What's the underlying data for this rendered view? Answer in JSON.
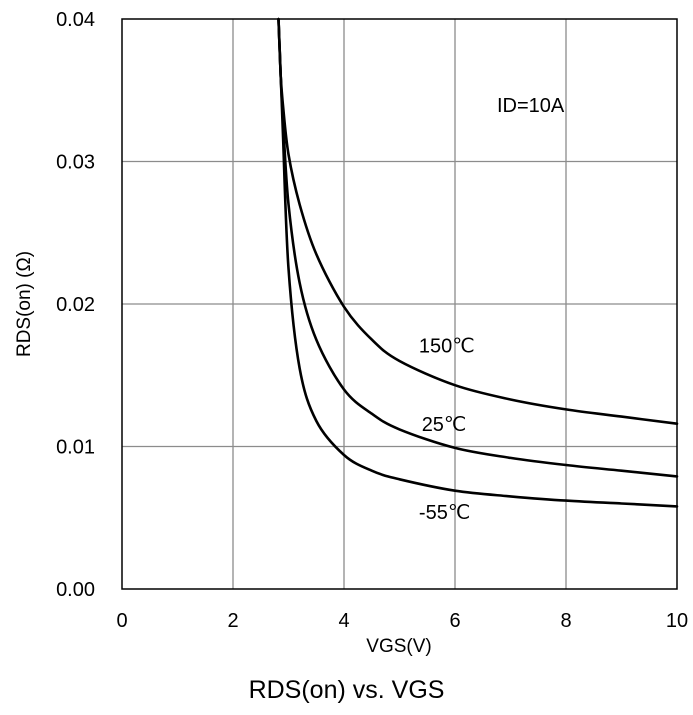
{
  "chart_data": {
    "type": "line",
    "title": "RDS(on) vs. VGS",
    "xlabel": "VGS(V)",
    "ylabel": "RDS(on) (Ω)",
    "xlim": [
      0,
      10
    ],
    "ylim": [
      0,
      0.04
    ],
    "x_ticks": [
      "0",
      "2",
      "4",
      "6",
      "8",
      "10"
    ],
    "y_ticks": [
      "0.00",
      "0.01",
      "0.02",
      "0.03",
      "0.04"
    ],
    "grid": true,
    "condition_label": "ID=10A",
    "series": [
      {
        "name": "150℃",
        "x": [
          2.82,
          2.86,
          2.9,
          3.0,
          3.2,
          3.5,
          4.0,
          4.5,
          5.0,
          6.0,
          7.0,
          8.0,
          9.0,
          10.0
        ],
        "y": [
          0.04,
          0.036,
          0.034,
          0.0305,
          0.027,
          0.0235,
          0.0198,
          0.0175,
          0.016,
          0.0143,
          0.0133,
          0.0126,
          0.0121,
          0.0116
        ]
      },
      {
        "name": "25℃",
        "x": [
          2.82,
          2.86,
          2.9,
          3.0,
          3.2,
          3.5,
          4.0,
          4.5,
          5.0,
          6.0,
          7.0,
          8.0,
          9.0,
          10.0
        ],
        "y": [
          0.04,
          0.036,
          0.033,
          0.027,
          0.0215,
          0.0175,
          0.014,
          0.0123,
          0.0112,
          0.0099,
          0.0092,
          0.0087,
          0.0083,
          0.0079
        ]
      },
      {
        "name": "-55℃",
        "x": [
          2.82,
          2.86,
          2.9,
          3.0,
          3.2,
          3.5,
          4.0,
          4.5,
          5.0,
          6.0,
          7.0,
          8.0,
          9.0,
          10.0
        ],
        "y": [
          0.04,
          0.036,
          0.032,
          0.0225,
          0.0155,
          0.0118,
          0.0094,
          0.0083,
          0.0077,
          0.0069,
          0.0065,
          0.0062,
          0.006,
          0.0058
        ]
      }
    ]
  }
}
